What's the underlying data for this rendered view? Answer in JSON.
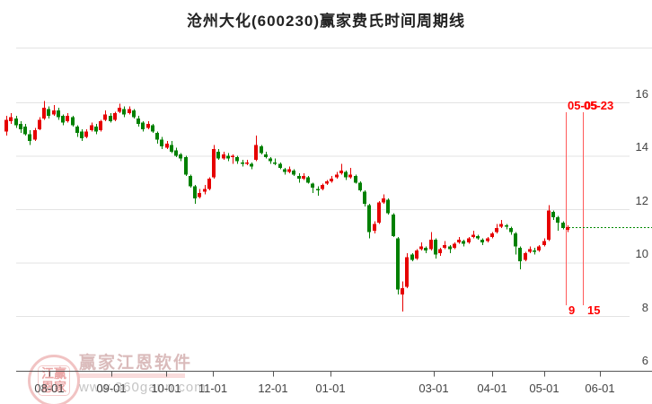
{
  "title": "沧州大化(600230)赢家费氏时间周期线",
  "watermark": {
    "seal_top": "江赢",
    "seal_bottom": "恩家",
    "brand": "赢家江恩软件",
    "url": "www.360gann.com"
  },
  "chart_data": {
    "type": "candlestick",
    "title": "沧州大化(600230)赢家费氏时间周期线",
    "x_axis": {
      "tick_labels": [
        "08-01",
        "09-01",
        "10-01",
        "11-01",
        "12-01",
        "01-01",
        "03-01",
        "04-01",
        "05-01",
        "06-01"
      ]
    },
    "y_axis": {
      "side": "right",
      "tick_labels": [
        "16",
        "14",
        "12",
        "10",
        "8",
        "6"
      ],
      "range": [
        6,
        16
      ]
    },
    "grid": "horizontal",
    "last_price": 11.33,
    "fib_time_lines": [
      {
        "date_label": "05-05",
        "count_label": "9"
      },
      {
        "date_label": "05-23",
        "count_label": "15"
      }
    ],
    "colors": {
      "up": "#e60000",
      "down": "#008000",
      "fib_line": "#ff5a5a",
      "fib_label": "#ff0000",
      "last_price_line": "#008800",
      "grid_line": "#e3e3e3",
      "axis_line": "#555555",
      "tick_label": "#444444"
    },
    "candles_format": [
      "open",
      "high",
      "low",
      "close"
    ],
    "candles": [
      [
        14.9,
        15.5,
        14.75,
        15.35
      ],
      [
        15.3,
        15.6,
        15.2,
        15.45
      ],
      [
        15.4,
        15.5,
        15.05,
        15.15
      ],
      [
        15.2,
        15.3,
        14.85,
        15.0
      ],
      [
        15.1,
        15.2,
        14.75,
        14.8
      ],
      [
        14.8,
        14.95,
        14.4,
        14.55
      ],
      [
        14.6,
        15.05,
        14.55,
        14.95
      ],
      [
        15.0,
        15.45,
        14.95,
        15.35
      ],
      [
        15.4,
        16.05,
        15.35,
        15.8
      ],
      [
        15.75,
        15.85,
        15.4,
        15.5
      ],
      [
        15.55,
        15.9,
        15.5,
        15.7
      ],
      [
        15.7,
        15.8,
        15.35,
        15.45
      ],
      [
        15.5,
        15.55,
        15.15,
        15.25
      ],
      [
        15.3,
        15.6,
        15.25,
        15.5
      ],
      [
        15.45,
        15.5,
        15.1,
        15.15
      ],
      [
        15.1,
        15.15,
        14.7,
        14.85
      ],
      [
        14.9,
        15.0,
        14.55,
        14.65
      ],
      [
        14.7,
        15.0,
        14.65,
        14.9
      ],
      [
        14.95,
        15.25,
        14.9,
        15.15
      ],
      [
        15.1,
        15.2,
        14.8,
        14.9
      ],
      [
        14.95,
        15.35,
        14.9,
        15.3
      ],
      [
        15.35,
        15.7,
        15.3,
        15.55
      ],
      [
        15.5,
        15.6,
        15.25,
        15.3
      ],
      [
        15.35,
        15.65,
        15.3,
        15.6
      ],
      [
        15.65,
        15.95,
        15.6,
        15.8
      ],
      [
        15.75,
        15.85,
        15.45,
        15.55
      ],
      [
        15.6,
        15.85,
        15.55,
        15.75
      ],
      [
        15.7,
        15.75,
        15.4,
        15.45
      ],
      [
        15.4,
        15.5,
        15.1,
        15.2
      ],
      [
        15.25,
        15.3,
        14.9,
        15.0
      ],
      [
        15.05,
        15.3,
        15.0,
        15.2
      ],
      [
        15.15,
        15.2,
        14.85,
        14.9
      ],
      [
        14.85,
        14.9,
        14.45,
        14.6
      ],
      [
        14.6,
        14.7,
        14.25,
        14.35
      ],
      [
        14.3,
        14.55,
        14.25,
        14.45
      ],
      [
        14.4,
        14.55,
        14.1,
        14.15
      ],
      [
        14.2,
        14.3,
        13.95,
        14.0
      ],
      [
        14.05,
        14.1,
        13.8,
        13.9
      ],
      [
        13.95,
        14.0,
        13.25,
        13.3
      ],
      [
        13.25,
        13.3,
        12.8,
        12.85
      ],
      [
        12.85,
        12.9,
        12.2,
        12.4
      ],
      [
        12.45,
        12.75,
        12.4,
        12.6
      ],
      [
        12.65,
        12.9,
        12.55,
        12.75
      ],
      [
        12.75,
        13.2,
        12.7,
        13.15
      ],
      [
        13.2,
        14.4,
        13.15,
        14.25
      ],
      [
        14.15,
        14.25,
        13.85,
        13.9
      ],
      [
        13.9,
        14.15,
        13.85,
        14.05
      ],
      [
        14.0,
        14.1,
        13.8,
        13.9
      ],
      [
        13.95,
        14.05,
        13.7,
        14.0
      ],
      [
        13.95,
        14.0,
        13.7,
        13.8
      ],
      [
        13.75,
        13.85,
        13.6,
        13.7
      ],
      [
        13.7,
        13.85,
        13.65,
        13.75
      ],
      [
        13.7,
        13.75,
        13.5,
        13.6
      ],
      [
        13.85,
        14.75,
        13.8,
        14.4
      ],
      [
        14.35,
        14.4,
        14.05,
        14.1
      ],
      [
        14.05,
        14.15,
        13.9,
        13.95
      ],
      [
        13.9,
        13.95,
        13.7,
        13.8
      ],
      [
        13.75,
        13.9,
        13.65,
        13.7
      ],
      [
        13.7,
        13.75,
        13.5,
        13.55
      ],
      [
        13.5,
        13.55,
        13.3,
        13.4
      ],
      [
        13.4,
        13.6,
        13.35,
        13.5
      ],
      [
        13.45,
        13.5,
        13.25,
        13.3
      ],
      [
        13.25,
        13.35,
        13.0,
        13.15
      ],
      [
        13.15,
        13.35,
        13.1,
        13.25
      ],
      [
        13.2,
        13.25,
        12.95,
        13.0
      ],
      [
        12.95,
        13.0,
        12.6,
        12.8
      ],
      [
        12.75,
        12.85,
        12.5,
        12.7
      ],
      [
        12.75,
        12.95,
        12.7,
        12.9
      ],
      [
        12.95,
        13.1,
        12.9,
        13.05
      ],
      [
        13.05,
        13.25,
        13.0,
        13.15
      ],
      [
        13.2,
        13.4,
        13.15,
        13.3
      ],
      [
        13.35,
        13.7,
        13.3,
        13.45
      ],
      [
        13.4,
        13.45,
        13.1,
        13.2
      ],
      [
        13.2,
        13.55,
        13.15,
        13.3
      ],
      [
        13.25,
        13.3,
        12.95,
        13.0
      ],
      [
        13.0,
        13.05,
        12.65,
        12.7
      ],
      [
        12.65,
        12.7,
        12.1,
        12.2
      ],
      [
        12.15,
        12.2,
        10.9,
        11.15
      ],
      [
        11.2,
        11.55,
        11.1,
        11.45
      ],
      [
        11.5,
        12.3,
        11.45,
        12.25
      ],
      [
        12.25,
        12.55,
        12.2,
        12.4
      ],
      [
        12.35,
        12.4,
        11.8,
        11.85
      ],
      [
        11.8,
        11.85,
        10.95,
        11.0
      ],
      [
        10.9,
        10.95,
        8.8,
        9.0
      ],
      [
        8.8,
        9.3,
        8.17,
        9.05
      ],
      [
        9.1,
        10.35,
        9.05,
        10.2
      ],
      [
        10.3,
        10.35,
        10.05,
        10.1
      ],
      [
        10.15,
        10.5,
        10.1,
        10.45
      ],
      [
        10.5,
        10.75,
        10.45,
        10.6
      ],
      [
        10.55,
        10.6,
        10.35,
        10.45
      ],
      [
        10.5,
        11.15,
        10.45,
        10.85
      ],
      [
        10.85,
        10.9,
        10.15,
        10.3
      ],
      [
        10.35,
        10.55,
        10.25,
        10.5
      ],
      [
        10.55,
        10.8,
        10.5,
        10.65
      ],
      [
        10.6,
        10.65,
        10.35,
        10.5
      ],
      [
        10.55,
        10.75,
        10.5,
        10.7
      ],
      [
        10.75,
        10.95,
        10.7,
        10.85
      ],
      [
        10.8,
        10.85,
        10.6,
        10.7
      ],
      [
        10.75,
        10.95,
        10.7,
        10.9
      ],
      [
        10.95,
        11.2,
        10.9,
        11.05
      ],
      [
        11.0,
        11.05,
        10.85,
        10.9
      ],
      [
        10.85,
        10.9,
        10.65,
        10.75
      ],
      [
        10.8,
        10.95,
        10.75,
        10.9
      ],
      [
        10.95,
        11.15,
        10.9,
        11.1
      ],
      [
        11.15,
        11.45,
        11.1,
        11.3
      ],
      [
        11.35,
        11.6,
        11.3,
        11.45
      ],
      [
        11.4,
        11.45,
        11.25,
        11.35
      ],
      [
        11.3,
        11.35,
        11.05,
        11.15
      ],
      [
        11.1,
        11.15,
        10.3,
        10.6
      ],
      [
        10.55,
        10.6,
        9.75,
        10.05
      ],
      [
        10.1,
        10.4,
        10.05,
        10.35
      ],
      [
        10.4,
        10.6,
        10.35,
        10.5
      ],
      [
        10.45,
        10.55,
        10.3,
        10.4
      ],
      [
        10.45,
        10.65,
        10.4,
        10.6
      ],
      [
        10.65,
        10.9,
        10.6,
        10.8
      ],
      [
        10.85,
        12.15,
        10.8,
        11.95
      ],
      [
        11.9,
        11.95,
        11.6,
        11.7
      ],
      [
        11.7,
        11.75,
        11.2,
        11.5
      ],
      [
        11.5,
        11.55,
        11.25,
        11.3
      ],
      [
        11.22,
        11.4,
        11.15,
        11.33
      ]
    ]
  }
}
